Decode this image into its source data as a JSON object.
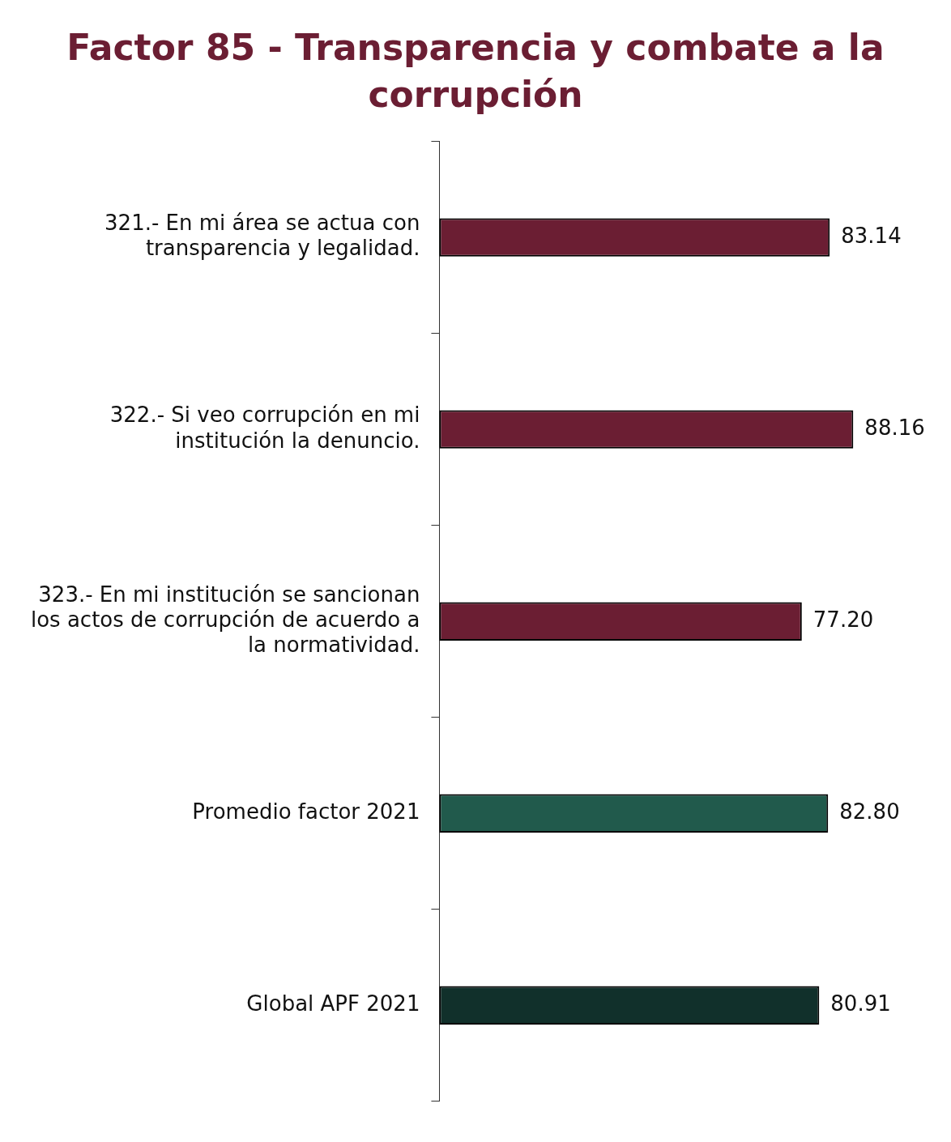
{
  "chart_data": {
    "type": "bar",
    "orientation": "horizontal",
    "title": "Factor 85 - Transparencia y combate a la corrupción",
    "categories": [
      "321.- En mi área se actua con transparencia y legalidad.",
      "322.- Si veo corrupción en mi institución la denuncio.",
      "323.- En mi institución se sancionan los actos de corrupción de acuerdo a la normatividad.",
      "Promedio factor 2021",
      "Global APF 2021"
    ],
    "values": [
      83.14,
      88.16,
      77.2,
      82.8,
      80.91
    ],
    "colors": [
      "#6b1e33",
      "#6b1e33",
      "#6b1e33",
      "#215a4c",
      "#11302b"
    ],
    "value_labels": [
      "83.14",
      "88.16",
      "77.20",
      "82.80",
      "80.91"
    ],
    "tick_labels": "y",
    "grid": false,
    "legend": false
  }
}
